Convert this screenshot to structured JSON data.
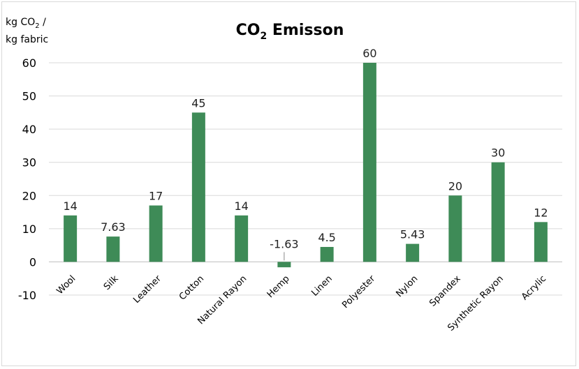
{
  "chart_data": {
    "type": "bar",
    "title_main": "CO",
    "title_sub": "2",
    "title_rest": " Emisson",
    "ylabel_line1_pre": "kg CO",
    "ylabel_line1_sub": "2",
    "ylabel_line1_post": " /",
    "ylabel_line2": "kg fabric",
    "categories": [
      "Wool",
      "Silk",
      "Leather",
      "Cotton",
      "Natural Rayon",
      "Hemp",
      "Linen",
      "Polyester",
      "Nylon",
      "Spandex",
      "Synthetic Rayon",
      "Acrylic"
    ],
    "values": [
      14,
      7.63,
      17,
      45,
      14,
      -1.63,
      4.5,
      60,
      5.43,
      20,
      30,
      12
    ],
    "data_labels": [
      "14",
      "7.63",
      "17",
      "45",
      "14",
      "-1.63",
      "4.5",
      "60",
      "5.43",
      "20",
      "30",
      "12"
    ],
    "ylim": [
      -10,
      60
    ],
    "yticks": [
      60,
      50,
      40,
      30,
      20,
      10,
      0,
      -10
    ],
    "grid": true,
    "legend": "none",
    "bar_color": "#3e8b57",
    "grid_color": "#d9d9d9"
  }
}
